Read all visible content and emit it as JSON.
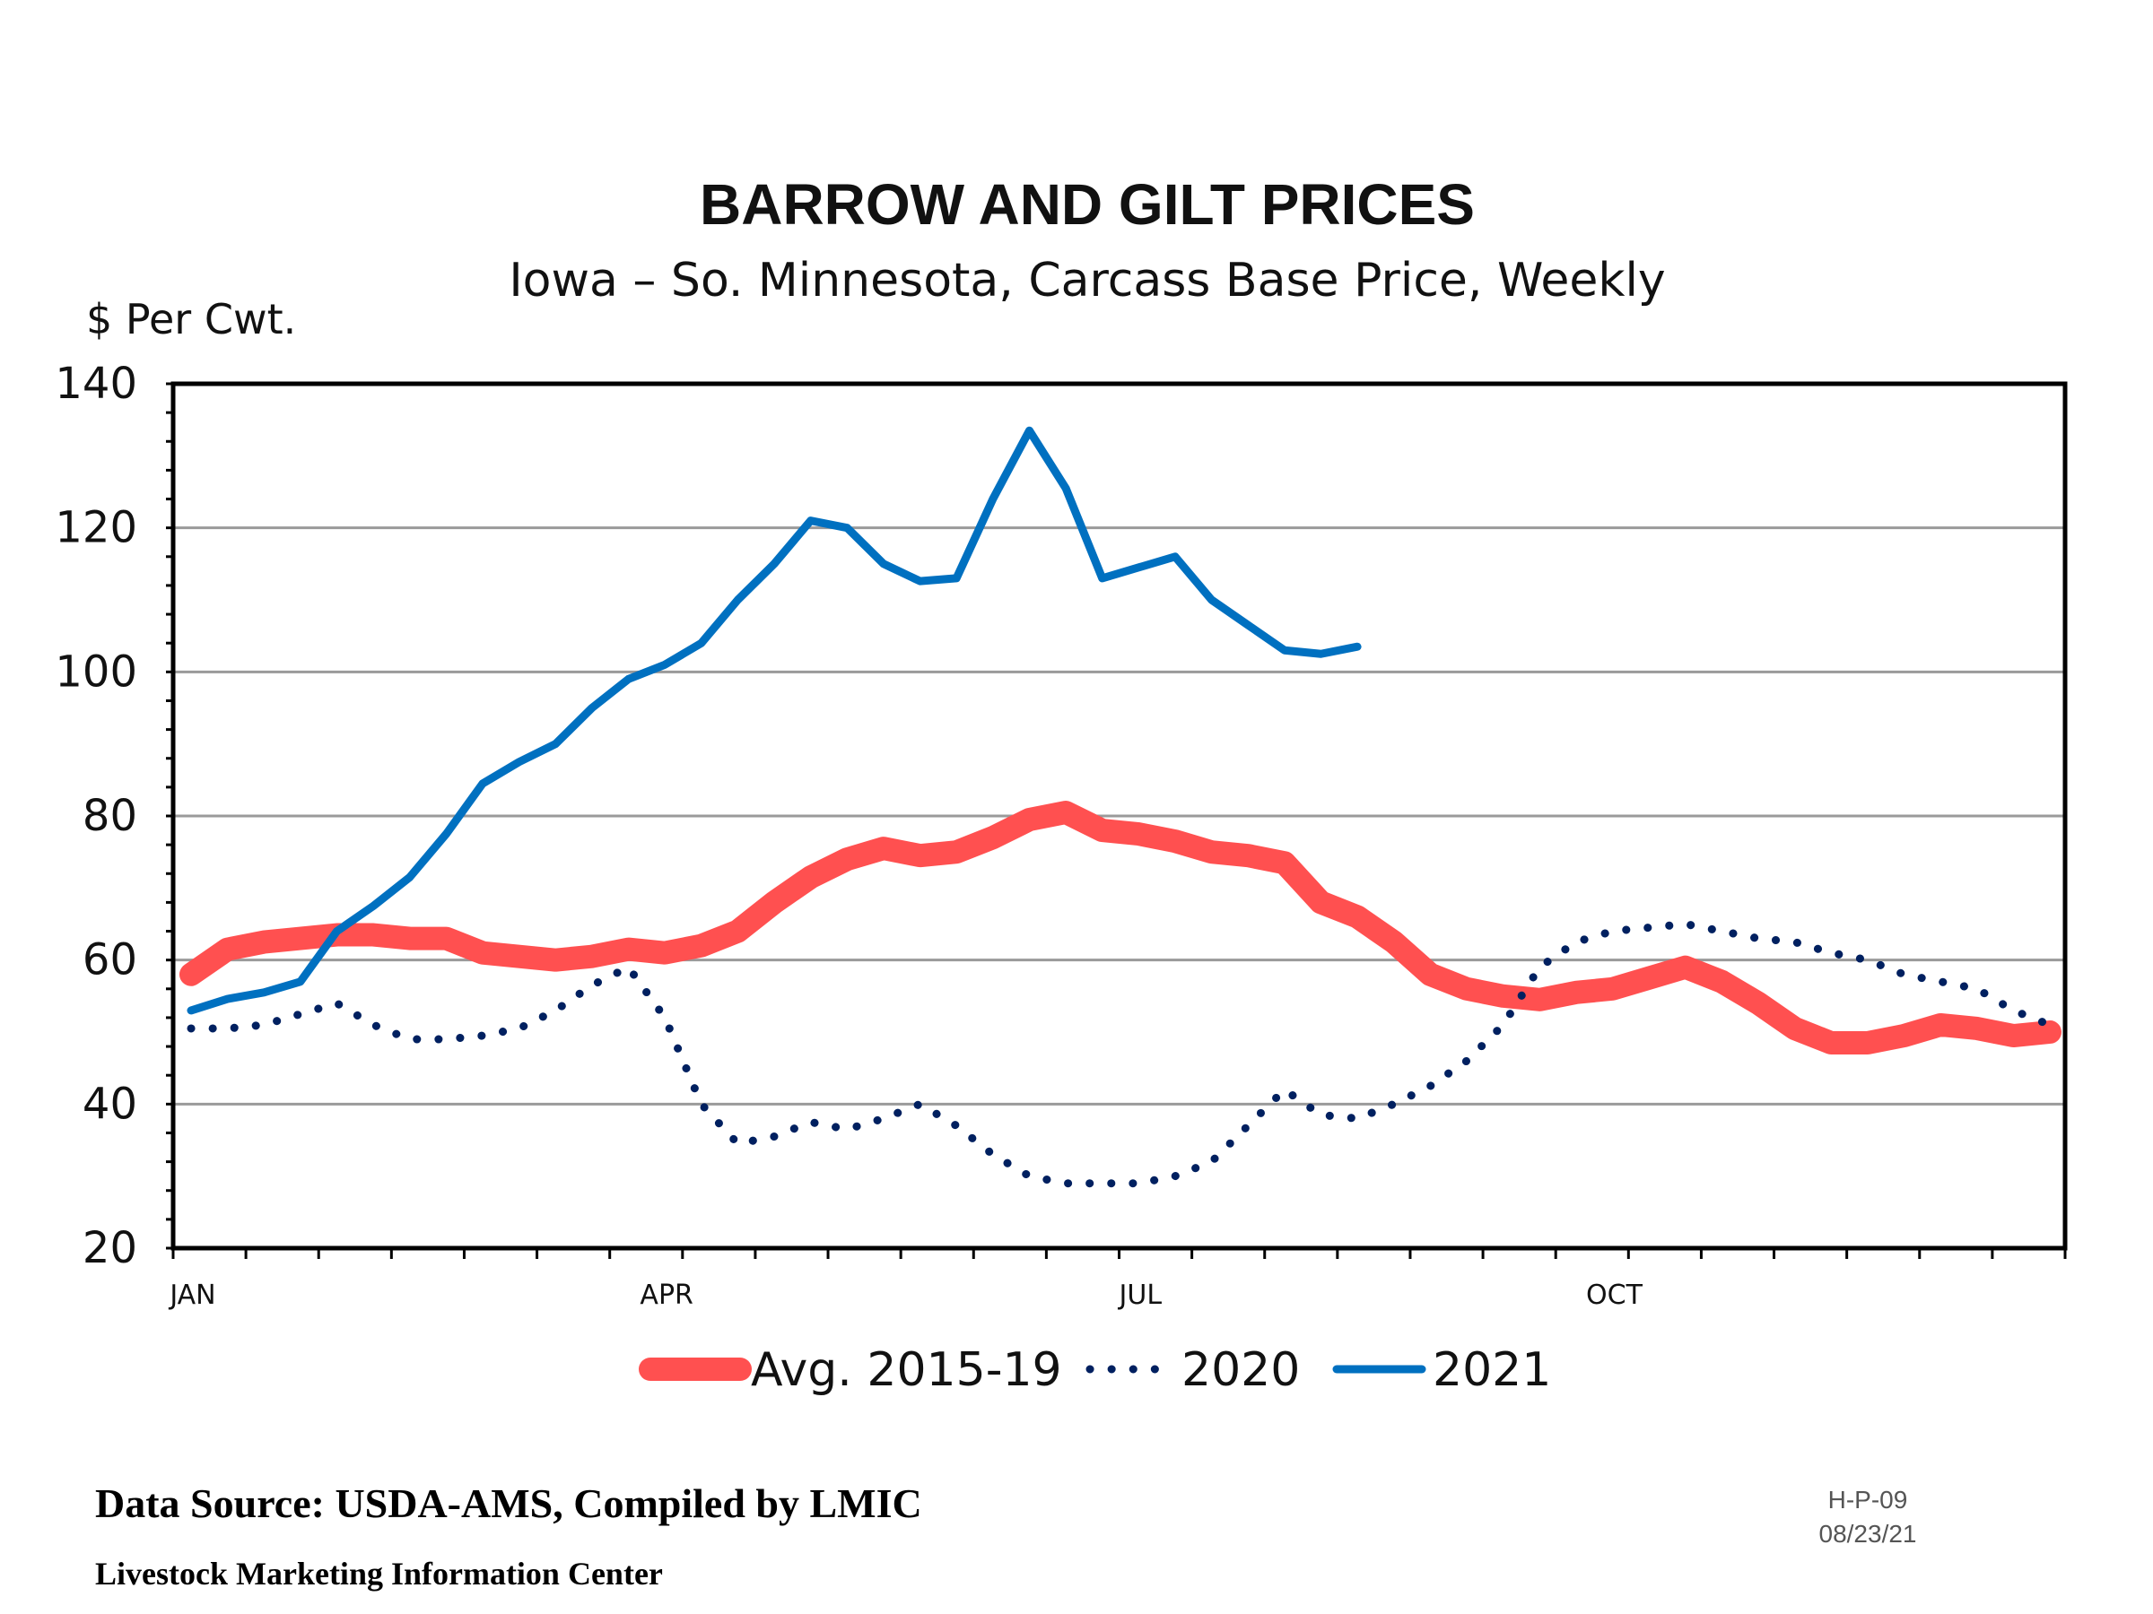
{
  "chart_data": {
    "type": "line",
    "title": "BARROW AND GILT PRICES",
    "subtitle": "Iowa – So. Minnesota, Carcass Base Price, Weekly",
    "ylabel": "$ Per Cwt.",
    "xlabel": "",
    "ylim": [
      20,
      140
    ],
    "yticks": [
      20,
      40,
      60,
      80,
      100,
      120,
      140
    ],
    "x_week_count": 52,
    "xtick_labels": [
      {
        "label": "JAN",
        "week": 0
      },
      {
        "label": "APR",
        "week": 13
      },
      {
        "label": "JUL",
        "week": 26
      },
      {
        "label": "OCT",
        "week": 39
      }
    ],
    "grid": true,
    "legend_position": "bottom",
    "series": [
      {
        "name": "Avg. 2015-19",
        "color": "#FF5050",
        "style": "thick",
        "values": [
          58,
          61.5,
          62.5,
          63,
          63.5,
          63.5,
          63,
          63,
          61,
          60.5,
          60,
          60.5,
          61.5,
          61,
          62,
          64,
          68,
          71.5,
          74,
          75.5,
          74.5,
          75,
          77,
          79.5,
          80.5,
          78,
          77.5,
          76.5,
          75,
          74.5,
          73.5,
          68,
          66,
          62.5,
          58,
          56,
          55,
          54.5,
          55.5,
          56,
          57.5,
          59,
          57,
          54,
          50.5,
          48.5,
          48.5,
          49.5,
          51,
          50.5,
          49.5,
          50
        ]
      },
      {
        "name": "2020",
        "color": "#002060",
        "style": "dotted",
        "values": [
          50.5,
          50.5,
          51,
          52.5,
          54,
          51,
          49,
          49,
          49.5,
          50.5,
          53,
          56.5,
          59,
          52,
          40,
          34.5,
          35.5,
          37.5,
          36.5,
          38,
          40,
          37,
          33,
          30,
          29,
          29,
          29,
          30,
          32,
          37,
          42,
          38.5,
          38,
          40,
          42.5,
          46,
          51,
          59,
          62.5,
          64,
          64.5,
          65,
          64,
          63,
          62.5,
          61,
          60,
          58,
          57,
          56,
          53,
          51
        ]
      },
      {
        "name": "2021",
        "color": "#0070C0",
        "style": "solid",
        "values": [
          53,
          54.6,
          55.5,
          57,
          64,
          67.5,
          71.5,
          77.5,
          84.5,
          87.5,
          90,
          95,
          99,
          101,
          104,
          110,
          115,
          121,
          120,
          115,
          112.6,
          113,
          124,
          133.5,
          125.5,
          113,
          114.5,
          116,
          110,
          106.5,
          103,
          102.5,
          103.5
        ]
      }
    ]
  },
  "footer": {
    "source": "Data Source: USDA-AMS, Compiled by LMIC",
    "organization": "Livestock Marketing Information Center",
    "chart_code": "H-P-09",
    "date": "08/23/21"
  }
}
